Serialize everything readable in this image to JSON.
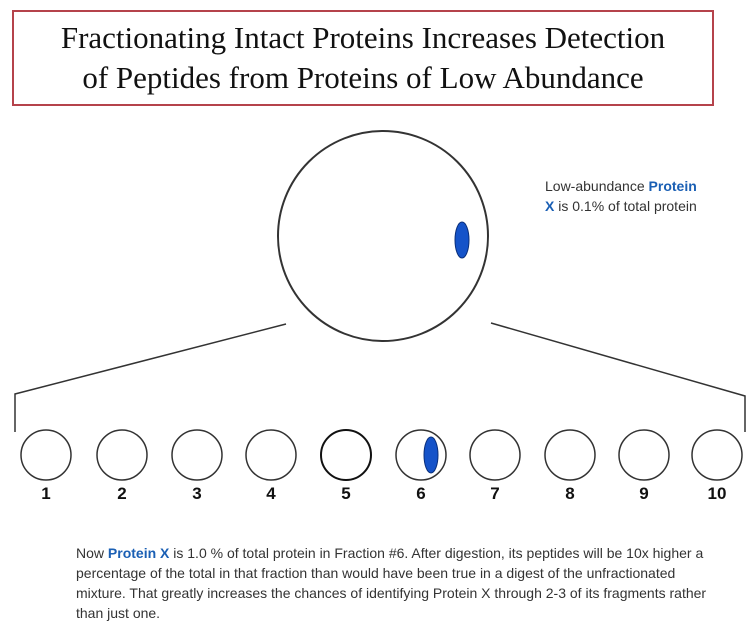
{
  "title": {
    "line1": "Fractionating Intact Proteins Increases Detection",
    "line2": "of Peptides from Proteins of Low Abundance"
  },
  "callout": {
    "prefix": "Low-abundance ",
    "protein_line1": "Protein",
    "protein_line2": "X",
    "suffix": " is 0.1% of total protein"
  },
  "fractions": [
    "1",
    "2",
    "3",
    "4",
    "5",
    "6",
    "7",
    "8",
    "9",
    "10"
  ],
  "note": {
    "prefix": "Now ",
    "highlight": "Protein X",
    "text": " is 1.0 % of total protein in Fraction #6.  After digestion, its peptides will be 10x higher a percentage of the total in that fraction than would have been true in a digest of the unfractionated mixture.  That greatly increases the chances of identifying Protein X through 2-3 of its fragments rather than just one."
  },
  "colors": {
    "protein": "#1553c9",
    "title_border": "#b5434b",
    "highlight_text": "#1a5fb4"
  }
}
